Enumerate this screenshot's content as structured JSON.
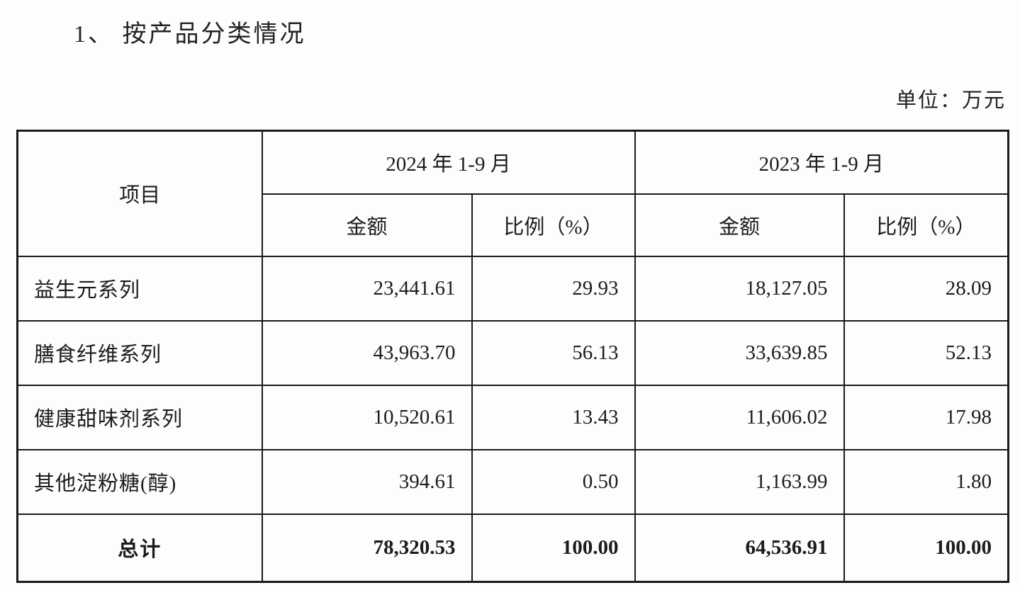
{
  "page": {
    "title": "1、 按产品分类情况",
    "unit_label": "单位：万元"
  },
  "table": {
    "header": {
      "item": "项目",
      "period_2024": "2024 年 1-9 月",
      "period_2023": "2023 年 1-9 月",
      "amount_2024": "金额",
      "ratio_2024": "比例（%）",
      "amount_2023": "金额",
      "ratio_2023": "比例（%）"
    },
    "rows": [
      {
        "name": "益生元系列",
        "amount_2024": "23,441.61",
        "ratio_2024": "29.93",
        "amount_2023": "18,127.05",
        "ratio_2023": "28.09"
      },
      {
        "name": "膳食纤维系列",
        "amount_2024": "43,963.70",
        "ratio_2024": "56.13",
        "amount_2023": "33,639.85",
        "ratio_2023": "52.13"
      },
      {
        "name": "健康甜味剂系列",
        "amount_2024": "10,520.61",
        "ratio_2024": "13.43",
        "amount_2023": "11,606.02",
        "ratio_2023": "17.98"
      },
      {
        "name": "其他淀粉糖(醇)",
        "amount_2024": "394.61",
        "ratio_2024": "0.50",
        "amount_2023": "1,163.99",
        "ratio_2023": "1.80"
      }
    ],
    "total": {
      "name": "总计",
      "amount_2024": "78,320.53",
      "ratio_2024": "100.00",
      "amount_2023": "64,536.91",
      "ratio_2023": "100.00"
    }
  }
}
